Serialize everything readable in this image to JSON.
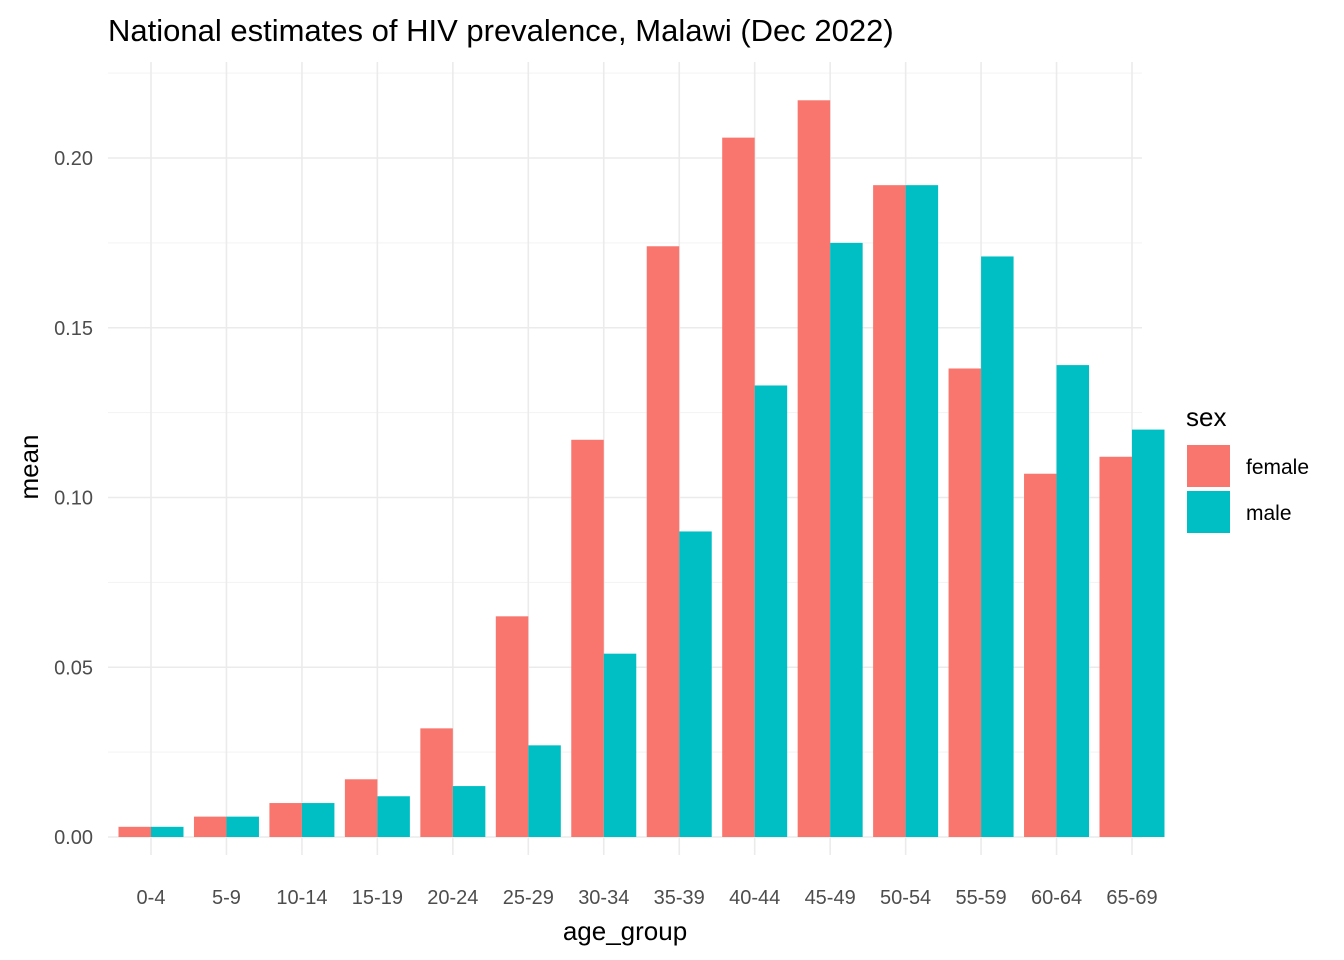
{
  "chart_data": {
    "type": "bar",
    "title": "National estimates of HIV prevalence, Malawi (Dec 2022)",
    "xlabel": "age_group",
    "ylabel": "mean",
    "categories": [
      "0-4",
      "5-9",
      "10-14",
      "15-19",
      "20-24",
      "25-29",
      "30-34",
      "35-39",
      "40-44",
      "45-49",
      "50-54",
      "55-59",
      "60-64",
      "65-69"
    ],
    "series": [
      {
        "name": "female",
        "color": "#F8766D",
        "values": [
          0.003,
          0.006,
          0.01,
          0.017,
          0.032,
          0.065,
          0.117,
          0.174,
          0.206,
          0.217,
          0.192,
          0.138,
          0.107,
          0.112
        ]
      },
      {
        "name": "male",
        "color": "#00BFC4",
        "values": [
          0.003,
          0.006,
          0.01,
          0.012,
          0.015,
          0.027,
          0.054,
          0.09,
          0.133,
          0.175,
          0.192,
          0.171,
          0.139,
          0.12
        ]
      }
    ],
    "ylim": [
      0,
      0.22
    ],
    "yticks": [
      "0.00",
      "0.05",
      "0.10",
      "0.15",
      "0.20"
    ],
    "grid": true,
    "legend": {
      "title": "sex",
      "position": "right"
    }
  }
}
